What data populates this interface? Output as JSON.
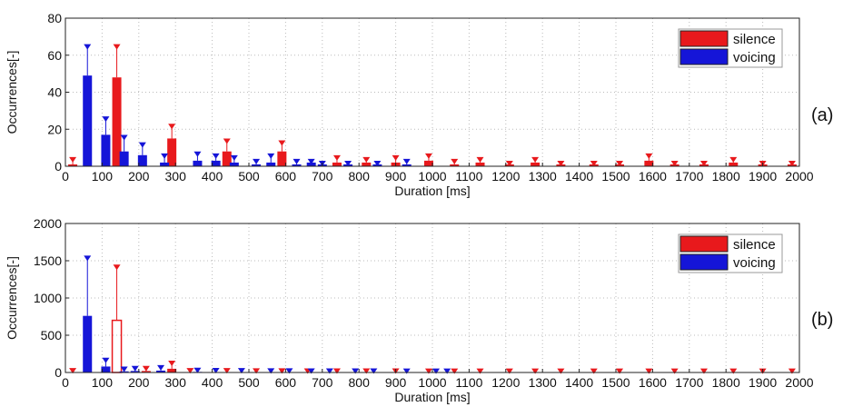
{
  "chart_data": [
    {
      "type": "bar",
      "panel_label": "(a)",
      "xlabel": "Duration [ms]",
      "ylabel": "Occurrences[-]",
      "xlim": [
        0,
        2000
      ],
      "ylim": [
        0,
        80
      ],
      "xticks": [
        0,
        100,
        200,
        300,
        400,
        500,
        600,
        700,
        800,
        900,
        1000,
        1100,
        1200,
        1300,
        1400,
        1500,
        1600,
        1700,
        1800,
        1900,
        2000
      ],
      "yticks": [
        0,
        20,
        40,
        60,
        80
      ],
      "grid": "dotted",
      "legend_position": "top-right",
      "series": [
        {
          "name": "silence",
          "color": "#e8191c",
          "x": [
            20,
            140,
            290,
            440,
            590,
            740,
            820,
            900,
            990,
            1060,
            1130,
            1210,
            1280,
            1350,
            1440,
            1510,
            1590,
            1660,
            1740,
            1820,
            1900,
            1980
          ],
          "values": [
            1,
            48,
            15,
            8,
            8,
            2,
            2,
            2,
            3,
            1,
            2,
            1,
            2,
            1,
            1,
            1,
            3,
            1,
            1,
            2,
            1,
            1
          ],
          "error_upper": [
            3,
            64,
            21,
            13,
            12,
            4,
            3,
            4,
            5,
            2,
            3,
            1,
            3,
            1,
            1,
            1,
            5,
            1,
            1,
            3,
            1,
            1
          ]
        },
        {
          "name": "voicing",
          "color": "#1515d8",
          "x": [
            60,
            110,
            160,
            210,
            270,
            360,
            410,
            460,
            520,
            560,
            630,
            670,
            700,
            770,
            850,
            930
          ],
          "values": [
            49,
            17,
            8,
            6,
            2,
            3,
            3,
            2,
            1,
            2,
            1,
            2,
            1,
            1,
            1,
            1
          ],
          "error_upper": [
            64,
            25,
            15,
            11,
            5,
            6,
            5,
            4,
            2,
            5,
            2,
            2,
            1,
            1,
            1,
            2
          ]
        }
      ]
    },
    {
      "type": "bar",
      "panel_label": "(b)",
      "xlabel": "Duration [ms]",
      "ylabel": "Occurrences[-]",
      "xlim": [
        0,
        2000
      ],
      "ylim": [
        0,
        2000
      ],
      "xticks": [
        0,
        100,
        200,
        300,
        400,
        500,
        600,
        700,
        800,
        900,
        1000,
        1100,
        1200,
        1300,
        1400,
        1500,
        1600,
        1700,
        1800,
        1900,
        2000
      ],
      "yticks": [
        0,
        500,
        1000,
        1500,
        2000
      ],
      "grid": "dotted",
      "legend_position": "top-right",
      "series": [
        {
          "name": "silence",
          "color": "#e8191c",
          "x": [
            20,
            140,
            220,
            290,
            340,
            440,
            520,
            590,
            660,
            740,
            820,
            900,
            990,
            1060,
            1130,
            1210,
            1280,
            1350,
            1440,
            1510,
            1590,
            1660,
            1740,
            1820,
            1900,
            1980
          ],
          "values": [
            5,
            700,
            20,
            50,
            5,
            5,
            4,
            4,
            3,
            3,
            3,
            3,
            2,
            2,
            2,
            2,
            2,
            2,
            2,
            2,
            2,
            2,
            2,
            2,
            2,
            2
          ],
          "error_upper": [
            10,
            1400,
            40,
            110,
            10,
            10,
            8,
            8,
            6,
            6,
            6,
            6,
            4,
            4,
            4,
            4,
            4,
            4,
            4,
            4,
            4,
            4,
            4,
            4,
            4,
            4
          ],
          "hollow_bars": [
            false,
            true,
            false,
            false,
            false,
            false,
            false,
            false,
            false,
            false,
            false,
            false,
            false,
            false,
            false,
            false,
            false,
            false,
            false,
            false,
            false,
            false,
            false,
            false,
            false,
            false
          ]
        },
        {
          "name": "voicing",
          "color": "#1515d8",
          "x": [
            60,
            110,
            160,
            190,
            260,
            360,
            410,
            480,
            560,
            610,
            670,
            720,
            790,
            840,
            930,
            1010,
            1040
          ],
          "values": [
            760,
            80,
            15,
            20,
            25,
            8,
            6,
            5,
            4,
            4,
            3,
            3,
            3,
            3,
            2,
            2,
            2
          ],
          "error_upper": [
            1520,
            150,
            30,
            40,
            50,
            15,
            12,
            10,
            8,
            8,
            6,
            6,
            6,
            6,
            4,
            4,
            4
          ]
        }
      ]
    }
  ]
}
